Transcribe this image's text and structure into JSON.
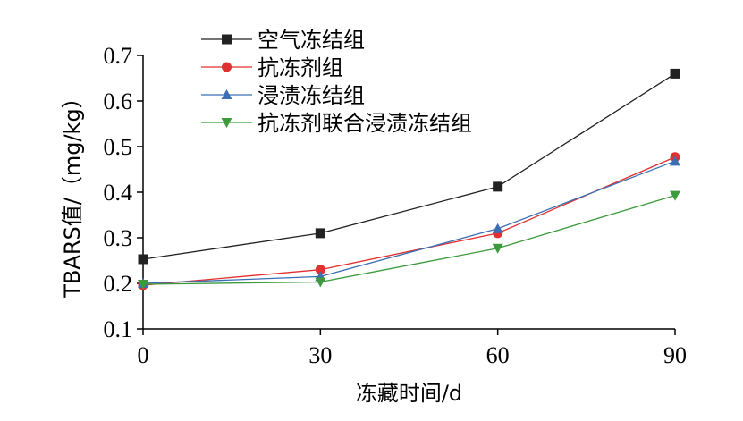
{
  "chart_data": {
    "type": "line",
    "xlabel": "冻藏时间/d",
    "ylabel": "TBARS值/（mg/kg）",
    "x": [
      0,
      30,
      60,
      90
    ],
    "xlim": [
      0,
      90
    ],
    "ylim": [
      0.1,
      0.7
    ],
    "xticks": [
      "0",
      "30",
      "60",
      "90"
    ],
    "yticks": [
      "0.1",
      "0.2",
      "0.3",
      "0.4",
      "0.5",
      "0.6",
      "0.7"
    ],
    "grid": false,
    "legend_position": "top-left",
    "series": [
      {
        "name": "空气冻结组",
        "values": [
          0.253,
          0.31,
          0.412,
          0.66
        ],
        "color": "#222222",
        "marker": "square"
      },
      {
        "name": "抗冻剂组",
        "values": [
          0.196,
          0.23,
          0.31,
          0.477
        ],
        "color": "#e03030",
        "marker": "circle"
      },
      {
        "name": "浸渍冻结组",
        "values": [
          0.2,
          0.215,
          0.32,
          0.468
        ],
        "color": "#3a6fb5",
        "marker": "triangle-up"
      },
      {
        "name": "抗冻剂联合浸渍冻结组",
        "values": [
          0.198,
          0.203,
          0.277,
          0.393
        ],
        "color": "#3c9a3c",
        "marker": "triangle-down"
      }
    ]
  }
}
